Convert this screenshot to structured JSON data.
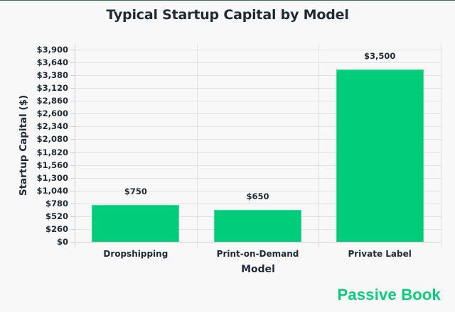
{
  "chart_data": {
    "type": "bar",
    "title": "Typical Startup Capital by Model",
    "xlabel": "Model",
    "ylabel": "Startup Capital ($)",
    "categories": [
      "Dropshipping",
      "Print-on-Demand",
      "Private Label"
    ],
    "values": [
      750,
      650,
      3500
    ],
    "value_labels": [
      "$750",
      "$650",
      "$3,500"
    ],
    "ylim": [
      0,
      3900
    ],
    "yticks": [
      0,
      260,
      520,
      780,
      1040,
      1300,
      1560,
      1820,
      2080,
      2340,
      2600,
      2860,
      3120,
      3380,
      3640,
      3900
    ],
    "ytick_labels": [
      "$0",
      "$260",
      "$520",
      "$780",
      "$1,040",
      "$1,300",
      "$1,560",
      "$1,820",
      "$2,080",
      "$2,340",
      "$2,600",
      "$2,860",
      "$3,120",
      "$3,380",
      "$3,640",
      "$3,900"
    ],
    "grid": true,
    "legend": null,
    "bar_color": "#00cc7a"
  },
  "title": "Typical Startup Capital by Model",
  "xlabel": "Model",
  "ylabel": "Startup Capital ($)",
  "brand": "Passive Book",
  "colors": {
    "bar": "#00cc7a",
    "text": "#1f2a36",
    "background": "#f8f8f8",
    "brand": "#00cc7a"
  }
}
